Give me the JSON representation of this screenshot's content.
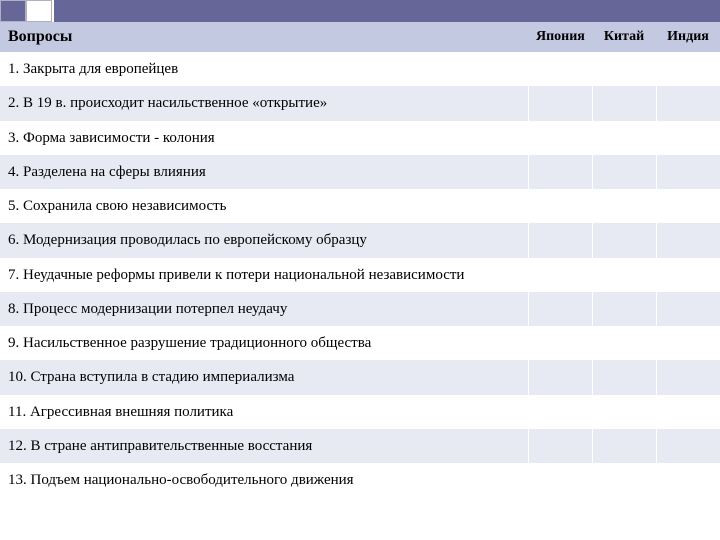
{
  "decoration": {
    "box1_color": "#666699",
    "box2_color": "#ffffff",
    "bar_color": "#666699"
  },
  "table": {
    "header_bg": "#c4c9e2",
    "row_odd_bg": "#ffffff",
    "row_even_bg": "#e7e9f3",
    "columns": {
      "questions": "Вопросы",
      "japan": "Япония",
      "china": "Китай",
      "india": "Индия"
    },
    "rows": [
      {
        "q": "1. Закрыта для европейцев",
        "japan": "",
        "china": "",
        "india": ""
      },
      {
        "q": "2. В 19 в. происходит насильственное «открытие»",
        "japan": "",
        "china": "",
        "india": ""
      },
      {
        "q": "3. Форма зависимости - колония",
        "japan": "",
        "china": "",
        "india": ""
      },
      {
        "q": "4. Разделена на сферы влияния",
        "japan": "",
        "china": "",
        "india": ""
      },
      {
        "q": "5. Сохранила свою независимость",
        "japan": "",
        "china": "",
        "india": ""
      },
      {
        "q": "6. Модернизация проводилась по европейскому образцу",
        "japan": "",
        "china": "",
        "india": ""
      },
      {
        "q": "7. Неудачные реформы привели к потери национальной независимости",
        "japan": "",
        "china": "",
        "india": ""
      },
      {
        "q": "8. Процесс модернизации потерпел неудачу",
        "japan": "",
        "china": "",
        "india": ""
      },
      {
        "q": "9. Насильственное разрушение традиционного общества",
        "japan": "",
        "china": "",
        "india": ""
      },
      {
        "q": "10. Страна вступила в стадию империализма",
        "japan": "",
        "china": "",
        "india": ""
      },
      {
        "q": "11. Агрессивная внешняя политика",
        "japan": "",
        "china": "",
        "india": ""
      },
      {
        "q": "12. В стране антиправительственные восстания",
        "japan": "",
        "china": "",
        "india": ""
      },
      {
        "q": "13. Подъем национально-освободительного движения",
        "japan": "",
        "china": "",
        "india": ""
      }
    ]
  }
}
